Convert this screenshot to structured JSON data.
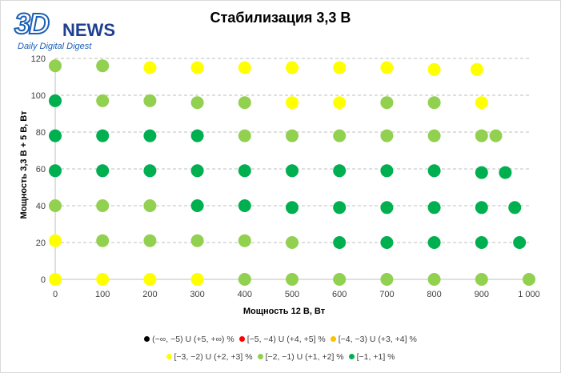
{
  "logo": {
    "mark": "3D",
    "word": "NEWS",
    "tagline": "Daily Digital Digest"
  },
  "chart_data": {
    "type": "scatter",
    "title": "Стабилизация 3,3 В",
    "xlabel": "Мощность  12 В, Вт",
    "ylabel": "Мощность  3,3 В + 5 В, Вт",
    "xlim": [
      0,
      1000
    ],
    "ylim": [
      0,
      120
    ],
    "xticks": [
      0,
      100,
      200,
      300,
      400,
      500,
      600,
      700,
      800,
      900,
      1000
    ],
    "xtick_labels": [
      "0",
      "100",
      "200",
      "300",
      "400",
      "500",
      "600",
      "700",
      "800",
      "900",
      "1 000"
    ],
    "yticks": [
      0,
      20,
      40,
      60,
      80,
      100,
      120
    ],
    "ytick_labels": [
      "0",
      "20",
      "40",
      "60",
      "80",
      "100",
      "120"
    ],
    "grid": "horizontal-dashed",
    "legend_position": "bottom",
    "series": [
      {
        "name": "(−∞, −5) U (+5, +∞) %",
        "color": "#000000",
        "points": []
      },
      {
        "name": "[−5, −4) U (+4, +5] %",
        "color": "#ff0000",
        "points": []
      },
      {
        "name": "[−4, −3) U (+3, +4] %",
        "color": "#ffc000",
        "points": []
      },
      {
        "name": "[−3, −2) U (+2, +3] %",
        "color": "#ffff00",
        "points": [
          [
            0,
            0
          ],
          [
            100,
            0
          ],
          [
            200,
            0
          ],
          [
            300,
            0
          ],
          [
            0,
            21
          ],
          [
            200,
            115
          ],
          [
            300,
            115
          ],
          [
            400,
            115
          ],
          [
            500,
            115
          ],
          [
            600,
            115
          ],
          [
            700,
            115
          ],
          [
            800,
            114
          ],
          [
            890,
            114
          ],
          [
            500,
            96
          ],
          [
            600,
            96
          ],
          [
            900,
            96
          ]
        ]
      },
      {
        "name": "[−2, −1) U (+1, +2] %",
        "color": "#92d050",
        "points": [
          [
            400,
            0
          ],
          [
            500,
            0
          ],
          [
            600,
            0
          ],
          [
            700,
            0
          ],
          [
            800,
            0
          ],
          [
            900,
            0
          ],
          [
            1000,
            0
          ],
          [
            100,
            21
          ],
          [
            200,
            21
          ],
          [
            300,
            21
          ],
          [
            400,
            21
          ],
          [
            500,
            20
          ],
          [
            0,
            40
          ],
          [
            100,
            40
          ],
          [
            200,
            40
          ],
          [
            400,
            78
          ],
          [
            500,
            78
          ],
          [
            600,
            78
          ],
          [
            700,
            78
          ],
          [
            800,
            78
          ],
          [
            900,
            78
          ],
          [
            930,
            78
          ],
          [
            100,
            97
          ],
          [
            200,
            97
          ],
          [
            300,
            96
          ],
          [
            400,
            96
          ],
          [
            700,
            96
          ],
          [
            800,
            96
          ],
          [
            0,
            116
          ],
          [
            100,
            116
          ]
        ]
      },
      {
        "name": "[−1, +1] %",
        "color": "#00b050",
        "points": [
          [
            600,
            20
          ],
          [
            700,
            20
          ],
          [
            800,
            20
          ],
          [
            900,
            20
          ],
          [
            980,
            20
          ],
          [
            300,
            40
          ],
          [
            400,
            40
          ],
          [
            500,
            39
          ],
          [
            600,
            39
          ],
          [
            700,
            39
          ],
          [
            800,
            39
          ],
          [
            900,
            39
          ],
          [
            970,
            39
          ],
          [
            0,
            59
          ],
          [
            100,
            59
          ],
          [
            200,
            59
          ],
          [
            300,
            59
          ],
          [
            400,
            59
          ],
          [
            500,
            59
          ],
          [
            600,
            59
          ],
          [
            700,
            59
          ],
          [
            800,
            59
          ],
          [
            900,
            58
          ],
          [
            950,
            58
          ],
          [
            0,
            78
          ],
          [
            100,
            78
          ],
          [
            200,
            78
          ],
          [
            300,
            78
          ],
          [
            0,
            97
          ]
        ]
      }
    ]
  }
}
